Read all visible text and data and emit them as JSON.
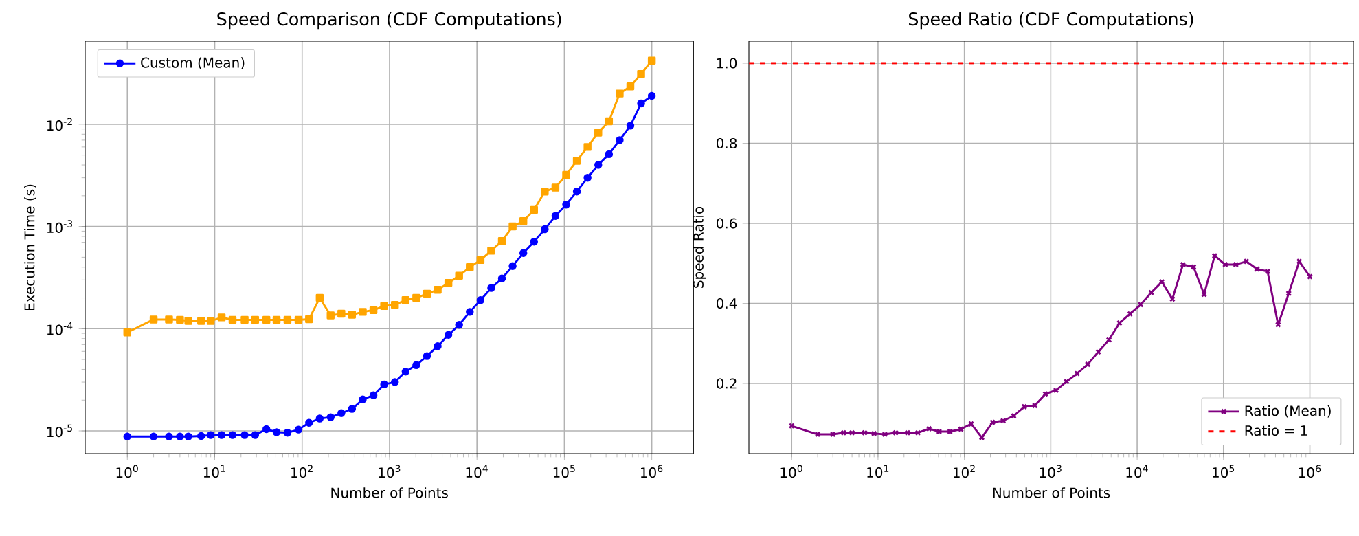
{
  "chart_data": [
    {
      "type": "line",
      "title": "Speed Comparison (CDF Computations)",
      "xlabel": "Number of Points",
      "ylabel": "Execution Time (s)",
      "log": "xy",
      "grid": true,
      "legend": "top left",
      "xlim": [
        0.33,
        3000000
      ],
      "ylim": [
        6e-06,
        0.065
      ],
      "xticks": [
        {
          "value": 1,
          "label": "10$^{0}$"
        },
        {
          "value": 10,
          "label": "10$^{1}$"
        },
        {
          "value": 100,
          "label": "10$^{2}$"
        },
        {
          "value": 1000,
          "label": "10$^{3}$"
        },
        {
          "value": 10000,
          "label": "10$^{4}$"
        },
        {
          "value": 100000,
          "label": "10$^{5}$"
        },
        {
          "value": 1000000,
          "label": "10$^{6}$"
        }
      ],
      "yticks": [
        {
          "value": 1e-05,
          "label": "10$^{-5}$"
        },
        {
          "value": 0.0001,
          "label": "10$^{-4}$"
        },
        {
          "value": 0.001,
          "label": "10$^{-3}$"
        },
        {
          "value": 0.01,
          "label": "10$^{-2}$"
        }
      ],
      "x": [
        1,
        2,
        3,
        4,
        5,
        7,
        9,
        12,
        16,
        22,
        29,
        39,
        51,
        68,
        91,
        120,
        159,
        212,
        281,
        372,
        494,
        655,
        868,
        1151,
        1526,
        2023,
        2682,
        3556,
        4714,
        6250,
        8286,
        10985,
        14563,
        19306,
        25595,
        33932,
        44984,
        59636,
        79060,
        104811,
        138949,
        184206,
        244205,
        323745,
        429193,
        568986,
        754312,
        1000000
      ],
      "series": [
        {
          "name": "Custom (Mean)",
          "color": "#0000ff",
          "marker": "circle",
          "values": [
            8.8e-06,
            8.8e-06,
            8.8e-06,
            8.8e-06,
            8.8e-06,
            8.9e-06,
            9.1e-06,
            9.1e-06,
            9.1e-06,
            9.1e-06,
            9.1e-06,
            1.04e-05,
            9.7e-06,
            9.6e-06,
            1.03e-05,
            1.2e-05,
            1.32e-05,
            1.36e-05,
            1.49e-05,
            1.64e-05,
            2.03e-05,
            2.23e-05,
            2.85e-05,
            3e-05,
            3.8e-05,
            4.4e-05,
            5.4e-05,
            6.75e-05,
            8.7e-05,
            0.000109,
            0.000146,
            0.00019,
            0.00025,
            0.00031,
            0.00041,
            0.00055,
            0.00071,
            0.00094,
            0.00127,
            0.00164,
            0.0022,
            0.003,
            0.004,
            0.0051,
            0.007,
            0.0097,
            0.016,
            0.019
          ]
        },
        {
          "color": "#ffa500",
          "marker": "square",
          "values": [
            9.2e-05,
            0.000123,
            0.000123,
            0.000122,
            0.000119,
            0.000119,
            0.000119,
            0.000129,
            0.000122,
            0.000122,
            0.000122,
            0.000122,
            0.000122,
            0.000122,
            0.000122,
            0.000124,
            0.0002,
            0.000135,
            0.00014,
            0.000137,
            0.000146,
            0.000152,
            0.000167,
            0.000171,
            0.00019,
            0.0002,
            0.00022,
            0.00024,
            0.00028,
            0.00033,
            0.0004,
            0.00047,
            0.00058,
            0.00072,
            0.001,
            0.00113,
            0.00145,
            0.0022,
            0.0024,
            0.0032,
            0.0044,
            0.006,
            0.0083,
            0.0107,
            0.02,
            0.0235,
            0.031,
            0.042
          ]
        }
      ]
    },
    {
      "type": "line",
      "title": "Speed Ratio (CDF Computations)",
      "xlabel": "Number of Points",
      "ylabel": "Speed Ratio",
      "log": "x",
      "grid": true,
      "legend": "bottom right",
      "xlim": [
        0.32,
        3200000
      ],
      "ylim": [
        0.025,
        1.055
      ],
      "xticks": [
        {
          "value": 1,
          "label": "10$^{0}$"
        },
        {
          "value": 10,
          "label": "10$^{1}$"
        },
        {
          "value": 100,
          "label": "10$^{2}$"
        },
        {
          "value": 1000,
          "label": "10$^{3}$"
        },
        {
          "value": 10000,
          "label": "10$^{4}$"
        },
        {
          "value": 100000,
          "label": "10$^{5}$"
        },
        {
          "value": 1000000,
          "label": "10$^{6}$"
        }
      ],
      "yticks": [
        {
          "value": 0.2,
          "label": "0.2"
        },
        {
          "value": 0.4,
          "label": "0.4"
        },
        {
          "value": 0.6,
          "label": "0.6"
        },
        {
          "value": 0.8,
          "label": "0.8"
        },
        {
          "value": 1.0,
          "label": "1.0"
        }
      ],
      "x": [
        1,
        2,
        3,
        4,
        5,
        7,
        9,
        12,
        16,
        22,
        29,
        39,
        51,
        68,
        91,
        120,
        159,
        212,
        281,
        372,
        494,
        655,
        868,
        1151,
        1526,
        2023,
        2682,
        3556,
        4714,
        6250,
        8286,
        10985,
        14563,
        19306,
        25595,
        33932,
        44984,
        59636,
        79060,
        104811,
        138949,
        184206,
        244205,
        323745,
        429193,
        568986,
        754312,
        1000000
      ],
      "series": [
        {
          "name": "Ratio (Mean)",
          "color": "#800080",
          "marker": "cross",
          "values": [
            0.094,
            0.073,
            0.073,
            0.077,
            0.077,
            0.077,
            0.075,
            0.073,
            0.077,
            0.077,
            0.077,
            0.087,
            0.08,
            0.08,
            0.086,
            0.099,
            0.065,
            0.103,
            0.107,
            0.119,
            0.142,
            0.145,
            0.174,
            0.183,
            0.205,
            0.225,
            0.248,
            0.279,
            0.309,
            0.351,
            0.374,
            0.397,
            0.427,
            0.454,
            0.411,
            0.497,
            0.491,
            0.423,
            0.519,
            0.497,
            0.497,
            0.505,
            0.486,
            0.48,
            0.347,
            0.425,
            0.505,
            0.467
          ]
        }
      ],
      "ref_lines": [
        {
          "axis": "y",
          "value": 1,
          "label": "Ratio = 1",
          "color": "#ff0000",
          "line_style": "dashed"
        }
      ]
    }
  ]
}
